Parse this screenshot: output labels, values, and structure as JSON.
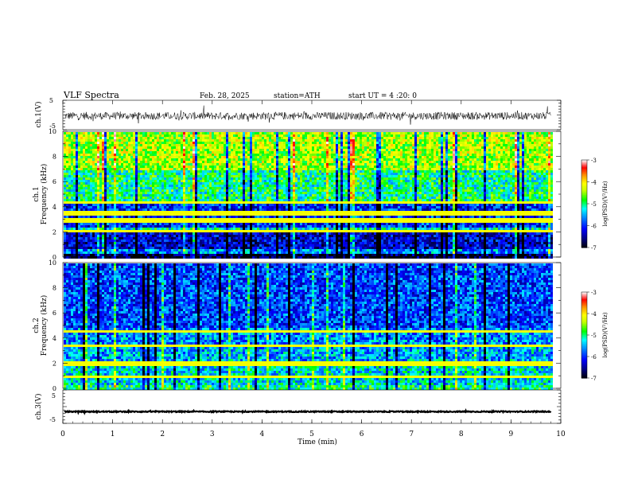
{
  "header": {
    "title": "VLF  Spectra",
    "date": "Feb. 28, 2025",
    "station": "station=ATH",
    "start": "start  UT  =   4  :20: 0"
  },
  "colorbar": {
    "label": "log(PSD)(V²/Hz)",
    "ticks": [
      "-3",
      "-4",
      "-5",
      "-6",
      "-7"
    ],
    "stops": [
      "#ffffff",
      "#ff3030",
      "#ff0000",
      "#ffa000",
      "#ffff00",
      "#80ff00",
      "#00ff00",
      "#00ffff",
      "#0080ff",
      "#0000ff",
      "#000040",
      "#000000"
    ]
  },
  "chart_data": [
    {
      "type": "line",
      "title": "",
      "ylabel": "ch.1(V)",
      "xlabel": "",
      "xlim": [
        0,
        10
      ],
      "ylim": [
        -5,
        5
      ],
      "yticks": [
        "5",
        "-5"
      ],
      "series": [
        {
          "values_note_level": -0.3
        }
      ],
      "color": "#000000"
    },
    {
      "type": "heatmap",
      "ylabel_channel": "ch.1",
      "ylabel": "Frequency  (kHz)",
      "xlim": [
        0,
        9.8
      ],
      "ylim": [
        0,
        10
      ],
      "yticks": [
        "0",
        "2",
        "4",
        "6",
        "8",
        "10"
      ],
      "bands": [
        {
          "f0": 0,
          "f1": 0.4,
          "level": -6.8
        },
        {
          "f0": 0.4,
          "f1": 0.8,
          "level": -5.6
        },
        {
          "f0": 0.8,
          "f1": 2.0,
          "level": -6.3
        },
        {
          "f0": 2.0,
          "f1": 2.4,
          "level": -5.2
        },
        {
          "f0": 2.4,
          "f1": 4.6,
          "level": -6.0
        },
        {
          "f0": 4.6,
          "f1": 7.0,
          "level": -5.0
        },
        {
          "f0": 7.0,
          "f1": 10.0,
          "level": -4.4
        }
      ],
      "lines_khz": [
        2.1,
        3.0,
        3.6,
        4.4
      ]
    },
    {
      "type": "heatmap",
      "ylabel_channel": "ch.2",
      "ylabel": "Frequency  (kHz)",
      "xlim": [
        0,
        9.8
      ],
      "ylim": [
        0,
        10
      ],
      "yticks": [
        "0",
        "2",
        "4",
        "6",
        "8",
        "10"
      ],
      "bands": [
        {
          "f0": 0,
          "f1": 0.4,
          "level": -5.0
        },
        {
          "f0": 0.4,
          "f1": 2.0,
          "level": -5.3
        },
        {
          "f0": 2.0,
          "f1": 3.5,
          "level": -5.5
        },
        {
          "f0": 3.5,
          "f1": 5.0,
          "level": -5.6
        },
        {
          "f0": 5.0,
          "f1": 10.0,
          "level": -5.9
        }
      ],
      "lines_khz": [
        1.0,
        2.0,
        2.1,
        3.5,
        4.6
      ]
    },
    {
      "type": "line",
      "title": "",
      "ylabel": "ch.3(V)",
      "xlabel": "Time  (min)",
      "xlim": [
        0,
        10
      ],
      "ylim": [
        -5,
        5
      ],
      "yticks": [
        "5",
        "-5"
      ],
      "xticks": [
        "0",
        "1",
        "2",
        "3",
        "4",
        "5",
        "6",
        "7",
        "8",
        "9",
        "10"
      ],
      "series": [
        {
          "values_note_level": -1.5
        }
      ],
      "color": "#000000"
    }
  ]
}
